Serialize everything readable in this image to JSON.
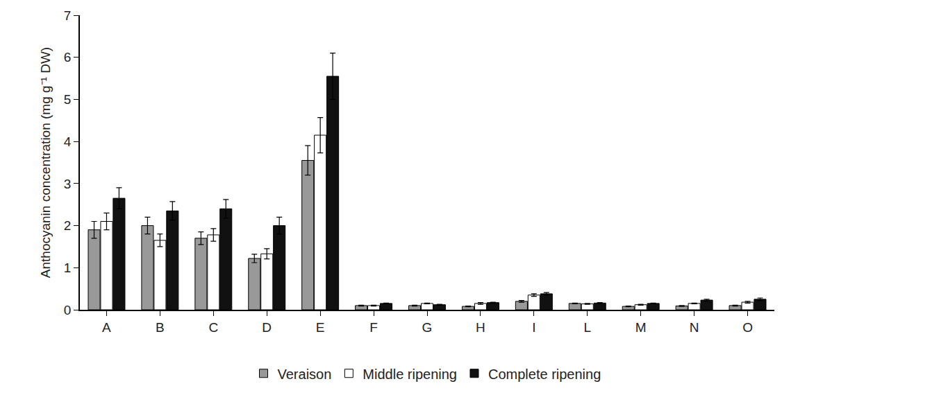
{
  "chart_data": {
    "type": "bar",
    "y_label": "Anthocyanin concentration (mg g⁻¹ DW)",
    "categories": [
      "A",
      "B",
      "C",
      "D",
      "E",
      "F",
      "G",
      "H",
      "I",
      "L",
      "M",
      "N",
      "O"
    ],
    "series": [
      {
        "name": "Veraison",
        "color": "#999999",
        "values": [
          1.9,
          2.0,
          1.7,
          1.22,
          3.55,
          0.1,
          0.1,
          0.08,
          0.2,
          0.15,
          0.08,
          0.09,
          0.1
        ],
        "errors": [
          0.2,
          0.2,
          0.15,
          0.1,
          0.35,
          0.01,
          0.01,
          0.01,
          0.02,
          0.01,
          0.01,
          0.01,
          0.01
        ]
      },
      {
        "name": "Middle ripening",
        "color": "#ffffff",
        "values": [
          2.1,
          1.65,
          1.78,
          1.33,
          4.15,
          0.1,
          0.15,
          0.15,
          0.35,
          0.14,
          0.12,
          0.15,
          0.18
        ],
        "errors": [
          0.2,
          0.15,
          0.15,
          0.12,
          0.42,
          0.01,
          0.01,
          0.02,
          0.03,
          0.01,
          0.01,
          0.01,
          0.02
        ]
      },
      {
        "name": "Complete ripening",
        "color": "#111111",
        "values": [
          2.65,
          2.35,
          2.4,
          2.0,
          5.55,
          0.15,
          0.12,
          0.17,
          0.38,
          0.16,
          0.15,
          0.23,
          0.25
        ],
        "errors": [
          0.25,
          0.22,
          0.22,
          0.2,
          0.55,
          0.01,
          0.01,
          0.01,
          0.03,
          0.01,
          0.01,
          0.02,
          0.03
        ]
      }
    ],
    "ylim": [
      0,
      7
    ],
    "yticks": [
      0,
      1,
      2,
      3,
      4,
      5,
      6,
      7
    ],
    "grid": false,
    "legend": "bottom"
  }
}
